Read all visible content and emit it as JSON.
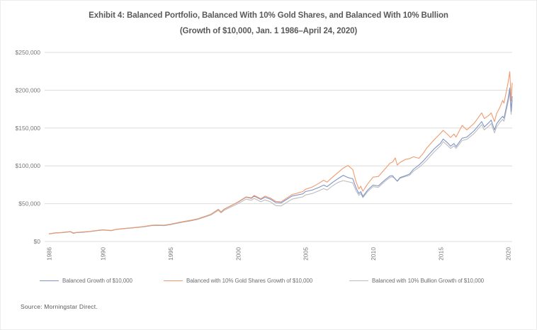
{
  "header": {
    "title_line1": "Exhibit 4: Balanced Portfolio, Balanced With 10% Gold Shares, and Balanced With 10% Bullion",
    "title_line2": "(Growth of $10,000, Jan. 1 1986–April 24, 2020)"
  },
  "source": {
    "text": "Source: Morningstar Direct."
  },
  "chart_data": {
    "type": "line",
    "title": "Exhibit 4: Balanced Portfolio, Balanced With 10% Gold Shares, and Balanced With 10% Bullion (Growth of $10,000, Jan. 1 1986–April 24, 2020)",
    "xlabel": "",
    "ylabel": "",
    "xlim": [
      1986,
      2020.31
    ],
    "ylim": [
      0,
      250000
    ],
    "grid": "horizontal-only",
    "legend_position": "bottom",
    "gridline_color": "#dcdcdc",
    "axis_text_color": "#77787b",
    "yticks": [
      {
        "value": 0,
        "label": "$0"
      },
      {
        "value": 50000,
        "label": "$50,000"
      },
      {
        "value": 100000,
        "label": "$100,000"
      },
      {
        "value": 150000,
        "label": "$150,000"
      },
      {
        "value": 200000,
        "label": "$200,000"
      },
      {
        "value": 250000,
        "label": "$250,000"
      }
    ],
    "xticks": [
      {
        "value": 1986,
        "label": "1986"
      },
      {
        "value": 1990,
        "label": "1990"
      },
      {
        "value": 1995,
        "label": "1995"
      },
      {
        "value": 2000,
        "label": "2000"
      },
      {
        "value": 2005,
        "label": "2005"
      },
      {
        "value": 2010,
        "label": "2010"
      },
      {
        "value": 2015,
        "label": "2015"
      },
      {
        "value": 2020,
        "label": "2020"
      }
    ],
    "x": [
      1986.0,
      1986.5,
      1987.0,
      1987.6,
      1987.8,
      1988.0,
      1988.5,
      1989.0,
      1989.5,
      1990.0,
      1990.6,
      1991.0,
      1991.5,
      1992.0,
      1993.0,
      1993.6,
      1994.0,
      1994.5,
      1995.0,
      1995.5,
      1996.0,
      1996.5,
      1997.0,
      1997.5,
      1998.0,
      1998.55,
      1998.75,
      1999.0,
      1999.5,
      2000.0,
      2000.6,
      2001.0,
      2001.2,
      2001.7,
      2002.0,
      2002.4,
      2002.8,
      2003.2,
      2004.0,
      2004.8,
      2005.0,
      2005.5,
      2006.0,
      2006.35,
      2006.6,
      2007.0,
      2007.4,
      2007.8,
      2008.15,
      2008.5,
      2008.75,
      2008.95,
      2009.1,
      2009.25,
      2009.6,
      2010.0,
      2010.4,
      2010.7,
      2011.0,
      2011.25,
      2011.45,
      2011.65,
      2011.8,
      2012.0,
      2012.4,
      2012.7,
      2013.0,
      2013.4,
      2013.7,
      2014.0,
      2014.5,
      2015.0,
      2015.2,
      2015.55,
      2015.75,
      2016.0,
      2016.15,
      2016.6,
      2016.95,
      2017.5,
      2018.05,
      2018.25,
      2018.6,
      2018.75,
      2019.0,
      2019.15,
      2019.4,
      2019.6,
      2019.7,
      2020.0,
      2020.13,
      2020.23,
      2020.31
    ],
    "series": [
      {
        "name": "Balanced Growth of $10,000",
        "color": "#8094c6",
        "values": [
          10000,
          11300,
          11700,
          12900,
          10900,
          11600,
          12300,
          13000,
          14200,
          15300,
          14300,
          15900,
          16900,
          17700,
          19500,
          21100,
          21500,
          21200,
          22500,
          24400,
          26200,
          27700,
          29700,
          32800,
          36000,
          42500,
          39000,
          43000,
          47500,
          52000,
          58500,
          57000,
          60000,
          55500,
          58500,
          56000,
          51500,
          51000,
          60000,
          63000,
          66000,
          68000,
          71500,
          74500,
          72500,
          78000,
          83000,
          87500,
          84500,
          83000,
          71000,
          63500,
          66000,
          59500,
          68000,
          74500,
          73500,
          78500,
          83000,
          86500,
          87000,
          82500,
          80000,
          84500,
          87000,
          89000,
          95500,
          101000,
          106000,
          112000,
          122000,
          130000,
          135500,
          130000,
          126000,
          129500,
          125500,
          136500,
          138000,
          146500,
          158500,
          151500,
          157500,
          160500,
          147500,
          155500,
          161500,
          165500,
          163000,
          188500,
          203000,
          172000,
          192000
        ]
      },
      {
        "name": "Balanced with 10% Gold Shares Growth of $10,000",
        "color": "#f09b6e",
        "values": [
          10000,
          11500,
          12000,
          13200,
          11300,
          11900,
          12600,
          13300,
          14500,
          15500,
          14600,
          16100,
          17100,
          17900,
          19800,
          21400,
          21800,
          21500,
          22800,
          24700,
          26500,
          28000,
          29900,
          32900,
          36000,
          42300,
          38800,
          42800,
          47300,
          52300,
          59000,
          57800,
          61000,
          56500,
          60000,
          57500,
          53000,
          52500,
          62000,
          66000,
          69000,
          72000,
          77000,
          81000,
          78500,
          85000,
          91000,
          97000,
          100500,
          95000,
          79000,
          69500,
          73000,
          66500,
          76000,
          85000,
          86000,
          92000,
          98000,
          103500,
          105000,
          110500,
          101000,
          104500,
          108500,
          109500,
          112000,
          110000,
          116000,
          124000,
          134000,
          143000,
          147000,
          141000,
          137500,
          142000,
          138000,
          153500,
          147500,
          156500,
          170000,
          162500,
          167000,
          170000,
          158500,
          169000,
          177500,
          186500,
          183000,
          209500,
          224500,
          186000,
          210000
        ]
      },
      {
        "name": "Balanced with 10% Bullion Growth of $10,000",
        "color": "#bdbdbd",
        "values": [
          10000,
          11400,
          11800,
          13000,
          11100,
          11700,
          12400,
          13100,
          14300,
          15300,
          14400,
          15900,
          16900,
          17600,
          19400,
          21000,
          21300,
          21000,
          22300,
          24100,
          25800,
          27200,
          29100,
          32000,
          35000,
          41200,
          37800,
          41500,
          45800,
          50000,
          56000,
          54500,
          57000,
          52500,
          55000,
          52500,
          47500,
          47000,
          56000,
          59000,
          61500,
          63500,
          67000,
          70000,
          68000,
          73500,
          78000,
          80500,
          79000,
          77500,
          67000,
          61000,
          63500,
          58000,
          66000,
          72500,
          71500,
          76500,
          81000,
          84500,
          85500,
          83000,
          79500,
          83500,
          86000,
          87500,
          93000,
          98000,
          102500,
          108000,
          118000,
          126500,
          132000,
          126500,
          123000,
          126500,
          123000,
          133500,
          135000,
          143000,
          154500,
          147500,
          153000,
          156000,
          143500,
          151500,
          157500,
          161500,
          159000,
          183500,
          197500,
          168000,
          187500
        ]
      }
    ]
  }
}
